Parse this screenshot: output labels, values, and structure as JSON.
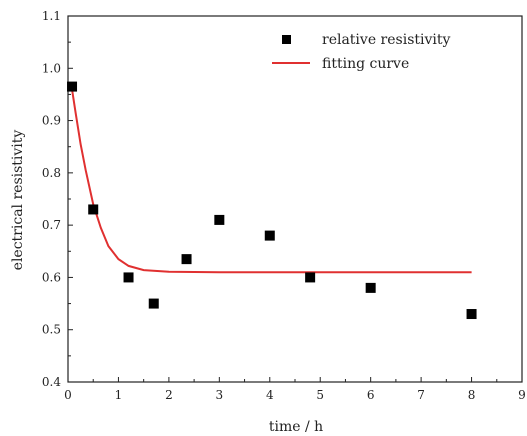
{
  "chart_data": {
    "type": "scatter",
    "title": "",
    "xlabel": "time / h",
    "ylabel": "electrical resistivity",
    "xlim": [
      0,
      9
    ],
    "ylim": [
      0.4,
      1.1
    ],
    "xticks": [
      0,
      1,
      2,
      3,
      4,
      5,
      6,
      7,
      8,
      9
    ],
    "yticks": [
      0.4,
      0.5,
      0.6,
      0.7,
      0.8,
      0.9,
      1.0,
      1.1
    ],
    "xtick_labels": [
      "0",
      "1",
      "2",
      "3",
      "4",
      "5",
      "6",
      "7",
      "8",
      "9"
    ],
    "ytick_labels": [
      "0.4",
      "0.5",
      "0.6",
      "0.7",
      "0.8",
      "0.9",
      "1.0",
      "1.1"
    ],
    "grid": false,
    "legend_position": "top-right",
    "series": [
      {
        "name": "relative resistivity",
        "kind": "scatter",
        "marker": "square",
        "color": "#000000",
        "points": [
          {
            "x": 0.08,
            "y": 0.965
          },
          {
            "x": 0.5,
            "y": 0.73
          },
          {
            "x": 1.2,
            "y": 0.6
          },
          {
            "x": 1.7,
            "y": 0.55
          },
          {
            "x": 2.35,
            "y": 0.635
          },
          {
            "x": 3.0,
            "y": 0.71
          },
          {
            "x": 4.0,
            "y": 0.68
          },
          {
            "x": 4.8,
            "y": 0.6
          },
          {
            "x": 6.0,
            "y": 0.58
          },
          {
            "x": 8.0,
            "y": 0.53
          }
        ]
      },
      {
        "name": "fitting curve",
        "kind": "line",
        "color": "#e03030",
        "points": [
          {
            "x": 0.08,
            "y": 0.96
          },
          {
            "x": 0.15,
            "y": 0.915
          },
          {
            "x": 0.25,
            "y": 0.855
          },
          {
            "x": 0.35,
            "y": 0.805
          },
          {
            "x": 0.5,
            "y": 0.74
          },
          {
            "x": 0.65,
            "y": 0.695
          },
          {
            "x": 0.8,
            "y": 0.66
          },
          {
            "x": 1.0,
            "y": 0.635
          },
          {
            "x": 1.2,
            "y": 0.622
          },
          {
            "x": 1.5,
            "y": 0.614
          },
          {
            "x": 2.0,
            "y": 0.611
          },
          {
            "x": 3.0,
            "y": 0.61
          },
          {
            "x": 5.0,
            "y": 0.61
          },
          {
            "x": 8.0,
            "y": 0.61
          }
        ]
      }
    ]
  }
}
